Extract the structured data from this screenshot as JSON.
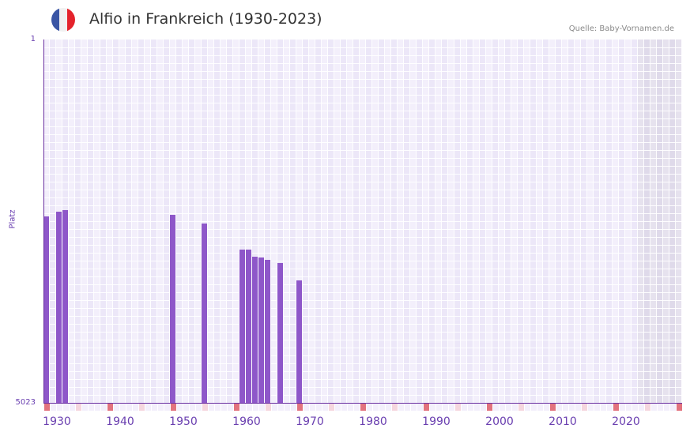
{
  "header": {
    "title": "Alfio in Frankreich (1930-2023)",
    "source": "Quelle: Baby-Vornamen.de",
    "flag_colors": [
      "#3a55a4",
      "#f1f1f1",
      "#e4232c"
    ]
  },
  "colors": {
    "bar": "#8e57c9",
    "axis": "#6a2fa0",
    "col_light": "#f3effb",
    "col_dark": "#ece7f8",
    "col_future_light": "#e6e2ee",
    "col_future_dark": "#dfdaea",
    "marker_decade": "#e2737e",
    "marker_half": "#f5d6de",
    "marker_default": "#f3effb"
  },
  "chart_data": {
    "type": "bar",
    "title": "Alfio in Frankreich (1930-2023)",
    "xlabel": "",
    "ylabel": "Platz",
    "ylim": [
      5023,
      1
    ],
    "y_inverted": true,
    "y_ticks": [
      "1",
      "5023"
    ],
    "x_range": [
      1928,
      2028
    ],
    "x_ticks": [
      "1930",
      "1940",
      "1950",
      "1960",
      "1970",
      "1980",
      "1990",
      "2000",
      "2010",
      "2020"
    ],
    "future_shaded_from": 2022,
    "grid": true,
    "legend": null,
    "categories": [
      "1928",
      "1930",
      "1931",
      "1948",
      "1953",
      "1959",
      "1960",
      "1961",
      "1962",
      "1963",
      "1965",
      "1968"
    ],
    "values": [
      2446,
      2381,
      2359,
      2425,
      2545,
      2905,
      2905,
      3003,
      3014,
      3047,
      3091,
      3331
    ]
  }
}
